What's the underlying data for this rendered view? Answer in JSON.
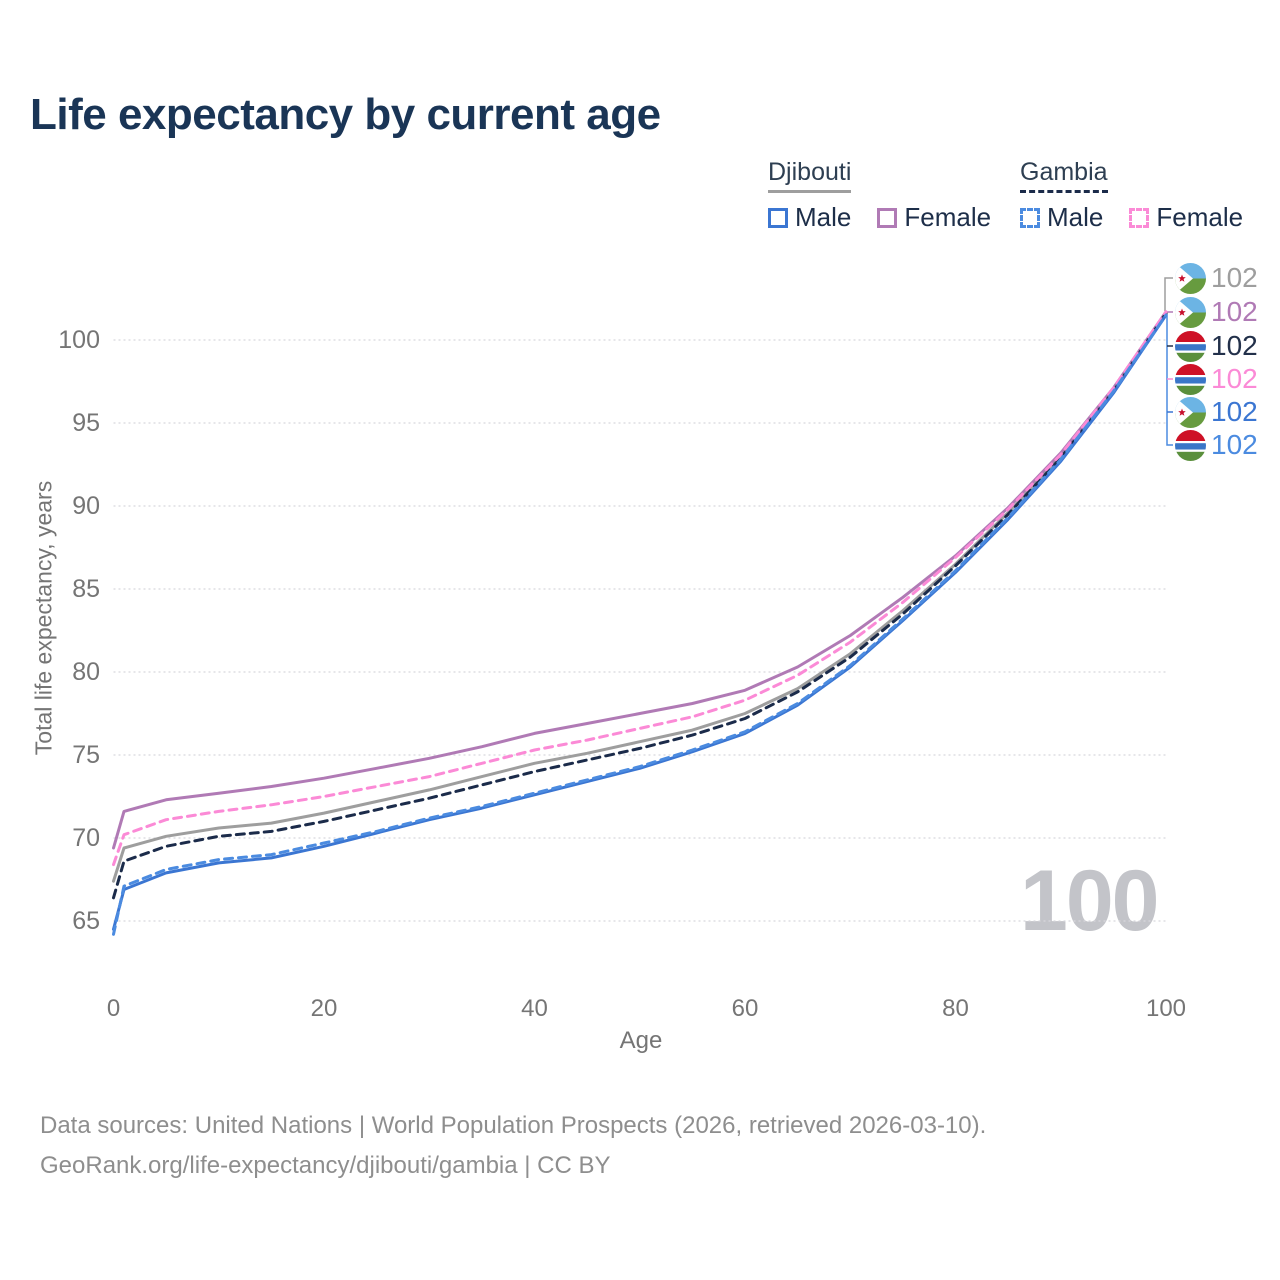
{
  "title": "Life expectancy by current age",
  "watermark": "100",
  "legend": {
    "groups": [
      {
        "label": "Djibouti",
        "line_style": "solid",
        "line_color": "#9e9e9e",
        "items": [
          {
            "label": "Male",
            "color": "#3b76d2",
            "style": "solid"
          },
          {
            "label": "Female",
            "color": "#b07ab5",
            "style": "solid"
          }
        ]
      },
      {
        "label": "Gambia",
        "line_style": "dashed",
        "line_color": "#1b2b4a",
        "items": [
          {
            "label": "Male",
            "color": "#4b8be0",
            "style": "dashed"
          },
          {
            "label": "Female",
            "color": "#fb8ad6",
            "style": "dashed"
          }
        ]
      }
    ]
  },
  "chart_data": {
    "type": "line",
    "title": "Life expectancy by current age",
    "xlabel": "Age",
    "ylabel": "Total life expectancy, years",
    "xlim": [
      0,
      100
    ],
    "ylim": [
      63.5,
      102.5
    ],
    "grid": "horizontal-only",
    "legend_position": "top-right",
    "x_ticks": [
      0,
      20,
      40,
      60,
      80,
      100
    ],
    "y_ticks": [
      65,
      70,
      75,
      80,
      85,
      90,
      95,
      100
    ],
    "x": [
      0,
      1,
      5,
      10,
      15,
      20,
      25,
      30,
      35,
      40,
      45,
      50,
      55,
      60,
      65,
      70,
      75,
      80,
      85,
      90,
      95,
      100
    ],
    "series": [
      {
        "id": "djibouti-all",
        "name": "Djibouti",
        "sex": "Both",
        "color": "#9e9e9e",
        "dash": "solid",
        "end_label": "102",
        "values": [
          67.4,
          69.4,
          70.1,
          70.6,
          70.9,
          71.5,
          72.2,
          72.9,
          73.7,
          74.5,
          75.1,
          75.8,
          76.5,
          77.5,
          79.0,
          81.1,
          83.7,
          86.5,
          89.6,
          93.0,
          97.0,
          101.6
        ]
      },
      {
        "id": "djibouti-female",
        "name": "Djibouti Female",
        "sex": "Female",
        "color": "#b07ab5",
        "dash": "solid",
        "end_label": "102",
        "values": [
          69.4,
          71.6,
          72.3,
          72.7,
          73.1,
          73.6,
          74.2,
          74.8,
          75.5,
          76.3,
          76.9,
          77.5,
          78.1,
          78.9,
          80.3,
          82.2,
          84.5,
          87.0,
          89.9,
          93.2,
          97.1,
          101.7
        ]
      },
      {
        "id": "gambia-all",
        "name": "Gambia",
        "sex": "Both",
        "color": "#1b2b4a",
        "dash": "dashed",
        "end_label": "102",
        "values": [
          66.4,
          68.6,
          69.5,
          70.1,
          70.4,
          71.0,
          71.7,
          72.4,
          73.2,
          74.0,
          74.7,
          75.4,
          76.2,
          77.2,
          78.8,
          80.9,
          83.5,
          86.4,
          89.5,
          92.9,
          96.9,
          101.6
        ]
      },
      {
        "id": "gambia-female",
        "name": "Gambia Female",
        "sex": "Female",
        "color": "#fb8ad6",
        "dash": "dashed",
        "end_label": "102",
        "values": [
          68.4,
          70.2,
          71.1,
          71.6,
          72.0,
          72.5,
          73.1,
          73.7,
          74.5,
          75.3,
          75.9,
          76.6,
          77.3,
          78.3,
          79.8,
          81.8,
          84.2,
          86.9,
          89.8,
          93.1,
          97.1,
          101.7
        ]
      },
      {
        "id": "djibouti-male",
        "name": "Djibouti Male",
        "sex": "Male",
        "color": "#3b76d2",
        "dash": "solid",
        "end_label": "102",
        "values": [
          64.5,
          66.9,
          67.9,
          68.5,
          68.8,
          69.5,
          70.3,
          71.1,
          71.8,
          72.6,
          73.4,
          74.2,
          75.2,
          76.3,
          78.0,
          80.3,
          83.1,
          86.0,
          89.2,
          92.7,
          96.8,
          101.5
        ]
      },
      {
        "id": "gambia-male",
        "name": "Gambia Male",
        "sex": "Male",
        "color": "#4b8be0",
        "dash": "dashed",
        "end_label": "102",
        "values": [
          64.2,
          67.1,
          68.1,
          68.7,
          69.0,
          69.7,
          70.4,
          71.2,
          71.9,
          72.7,
          73.5,
          74.3,
          75.3,
          76.4,
          78.1,
          80.4,
          83.2,
          86.1,
          89.3,
          92.8,
          96.9,
          101.5
        ]
      }
    ]
  },
  "end_labels": [
    {
      "series": "djibouti-all",
      "flag": "djibouti",
      "value": "102",
      "color": "#9e9e9e"
    },
    {
      "series": "djibouti-female",
      "flag": "djibouti",
      "value": "102",
      "color": "#b07ab5"
    },
    {
      "series": "gambia-all",
      "flag": "gambia",
      "value": "102",
      "color": "#22304a"
    },
    {
      "series": "gambia-female",
      "flag": "gambia",
      "value": "102",
      "color": "#fb8ad6"
    },
    {
      "series": "djibouti-male",
      "flag": "djibouti",
      "value": "102",
      "color": "#3b76d2"
    },
    {
      "series": "gambia-male",
      "flag": "gambia",
      "value": "102",
      "color": "#4b8be0"
    }
  ],
  "footer": {
    "line1": "Data sources: United Nations | World Population Prospects (2026, retrieved 2026-03-10).",
    "line2": "GeoRank.org/life-expectancy/djibouti/gambia | CC BY"
  }
}
